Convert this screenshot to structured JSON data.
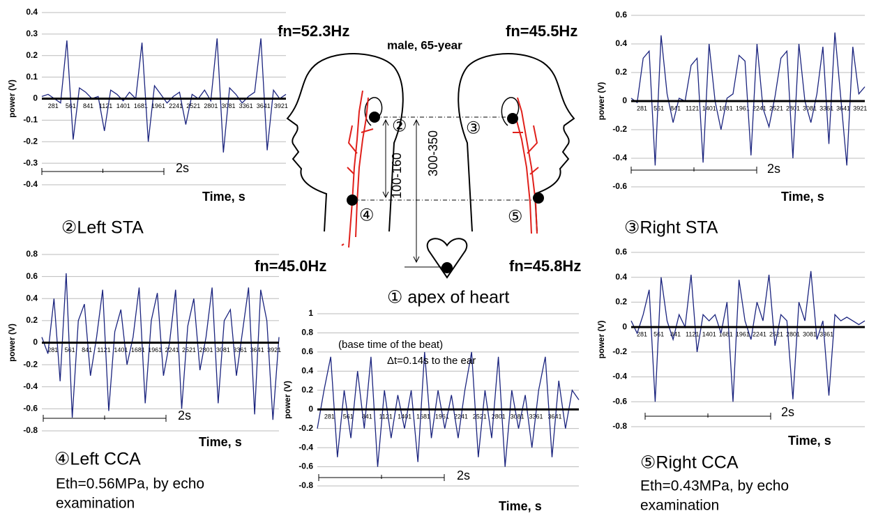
{
  "chart_data": [
    {
      "type": "line",
      "title": "②Left STA",
      "x_label": "Time, s",
      "y_label": "power (V)",
      "scale_label": "2s",
      "x": [
        100,
        200,
        300,
        400,
        500,
        600,
        700,
        800,
        900,
        1000,
        1100,
        1200,
        1300,
        1400,
        1500,
        1600,
        1700,
        1800,
        1900,
        2000,
        2100,
        2200,
        2300,
        2400,
        2500,
        2600,
        2700,
        2800,
        2900,
        3000,
        3100,
        3200,
        3300,
        3400,
        3500,
        3600,
        3700,
        3800,
        3900,
        4000
      ],
      "xlim": [
        100,
        4000
      ],
      "xticks": [
        281,
        561,
        841,
        1121,
        1401,
        1681,
        1961,
        2241,
        2521,
        2801,
        3081,
        3361,
        3641,
        3921
      ],
      "ylim": [
        -0.4,
        0.4
      ],
      "yticks": [
        0.4,
        0.3,
        0.2,
        0.1,
        0,
        -0.1,
        -0.2,
        -0.3,
        -0.4
      ],
      "grid": true,
      "series": [
        {
          "color": "#1a237e",
          "values": [
            0.01,
            0.02,
            0.0,
            -0.02,
            0.27,
            -0.19,
            0.05,
            0.03,
            0.0,
            0.01,
            -0.15,
            0.04,
            0.02,
            -0.01,
            0.03,
            0.0,
            0.26,
            -0.2,
            0.06,
            0.02,
            -0.02,
            0.01,
            0.03,
            -0.12,
            0.02,
            0.0,
            0.04,
            -0.01,
            0.28,
            -0.25,
            0.05,
            0.02,
            -0.02,
            0.01,
            0.03,
            0.28,
            -0.24,
            0.04,
            0.0,
            0.02
          ]
        }
      ]
    },
    {
      "type": "line",
      "title": "③Right STA",
      "x_label": "Time, s",
      "y_label": "power (V)",
      "scale_label": "2s",
      "x": [
        100,
        200,
        300,
        400,
        500,
        600,
        700,
        800,
        900,
        1000,
        1100,
        1200,
        1300,
        1400,
        1500,
        1600,
        1700,
        1800,
        1900,
        2000,
        2100,
        2200,
        2300,
        2400,
        2500,
        2600,
        2700,
        2800,
        2900,
        3000,
        3100,
        3200,
        3300,
        3400,
        3500,
        3600,
        3700,
        3800,
        3900,
        4000
      ],
      "xlim": [
        100,
        4000
      ],
      "xticks": [
        281,
        561,
        841,
        1121,
        1401,
        1681,
        1961,
        2241,
        2521,
        2801,
        3081,
        3361,
        3641,
        3921
      ],
      "ylim": [
        -0.6,
        0.6
      ],
      "yticks": [
        0.6,
        0.4,
        0.2,
        0,
        -0.2,
        -0.4,
        -0.6
      ],
      "grid": true,
      "series": [
        {
          "color": "#1a237e",
          "values": [
            0.02,
            -0.01,
            0.3,
            0.35,
            -0.45,
            0.46,
            0.05,
            -0.15,
            0.02,
            0.0,
            0.25,
            0.3,
            -0.43,
            0.4,
            0.0,
            -0.2,
            0.02,
            0.05,
            0.32,
            0.28,
            -0.38,
            0.4,
            -0.05,
            -0.18,
            0.03,
            0.3,
            0.35,
            -0.4,
            0.4,
            0.0,
            -0.15,
            0.05,
            0.38,
            -0.3,
            0.48,
            0.02,
            -0.45,
            0.38,
            0.05,
            0.1
          ]
        }
      ]
    },
    {
      "type": "line",
      "title": "④Left CCA",
      "notes": [
        "Eth=0.56MPa, by echo",
        "examination"
      ],
      "x_label": "Time, s",
      "y_label": "power (V)",
      "scale_label": "2s",
      "x": [
        100,
        200,
        300,
        400,
        500,
        600,
        700,
        800,
        900,
        1000,
        1100,
        1200,
        1300,
        1400,
        1500,
        1600,
        1700,
        1800,
        1900,
        2000,
        2100,
        2200,
        2300,
        2400,
        2500,
        2600,
        2700,
        2800,
        2900,
        3000,
        3100,
        3200,
        3300,
        3400,
        3500,
        3600,
        3700,
        3800,
        3900,
        4000
      ],
      "xlim": [
        100,
        4000
      ],
      "xticks": [
        281,
        561,
        841,
        1121,
        1401,
        1681,
        1961,
        2241,
        2521,
        2801,
        3081,
        3361,
        3641,
        3921
      ],
      "ylim": [
        -0.8,
        0.8
      ],
      "yticks": [
        0.8,
        0.6,
        0.4,
        0.2,
        0,
        -0.2,
        -0.4,
        -0.6,
        -0.8
      ],
      "grid": true,
      "series": [
        {
          "color": "#1a237e",
          "values": [
            0.05,
            -0.1,
            0.4,
            -0.35,
            0.63,
            -0.68,
            0.2,
            0.35,
            -0.3,
            0.05,
            0.48,
            -0.62,
            0.1,
            0.3,
            -0.2,
            0.05,
            0.5,
            -0.55,
            0.2,
            0.45,
            -0.3,
            0.0,
            0.48,
            -0.6,
            0.15,
            0.4,
            -0.25,
            0.05,
            0.5,
            -0.55,
            0.2,
            0.3,
            -0.3,
            0.1,
            0.5,
            -0.65,
            0.48,
            0.2,
            -0.7,
            0.05
          ]
        }
      ]
    },
    {
      "type": "line",
      "title": "⑤Right CCA",
      "notes": [
        "Eth=0.43MPa, by echo",
        "examination"
      ],
      "x_label": "Time, s",
      "y_label": "power (V)",
      "scale_label": "2s",
      "x": [
        100,
        200,
        300,
        400,
        500,
        600,
        700,
        800,
        900,
        1000,
        1100,
        1200,
        1300,
        1400,
        1500,
        1600,
        1700,
        1800,
        1900,
        2000,
        2100,
        2200,
        2300,
        2400,
        2500,
        2600,
        2700,
        2800,
        2900,
        3000,
        3100,
        3200,
        3300,
        3400,
        3500,
        3600,
        3700,
        3800,
        3900,
        4000
      ],
      "xlim": [
        100,
        4000
      ],
      "xticks": [
        281,
        561,
        841,
        1121,
        1401,
        1681,
        1961,
        2241,
        2521,
        2801,
        3081,
        3361
      ],
      "ylim": [
        -0.8,
        0.6
      ],
      "yticks": [
        0.6,
        0.4,
        0.2,
        0,
        -0.2,
        -0.4,
        -0.6,
        -0.8
      ],
      "grid": true,
      "series": [
        {
          "color": "#1a237e",
          "values": [
            0.05,
            -0.05,
            0.1,
            0.3,
            -0.6,
            0.4,
            0.05,
            -0.1,
            0.1,
            0.0,
            0.42,
            -0.2,
            0.1,
            0.05,
            0.1,
            -0.05,
            0.2,
            -0.6,
            0.38,
            0.05,
            -0.1,
            0.2,
            0.05,
            0.42,
            -0.15,
            0.1,
            0.05,
            -0.58,
            0.2,
            0.05,
            0.45,
            -0.1,
            0.05,
            -0.55,
            0.1,
            0.05,
            0.08,
            0.05,
            0.02,
            0.05
          ]
        }
      ]
    },
    {
      "type": "line",
      "title": "① apex of heart",
      "annotations": [
        "(base time of the beat)",
        "Δt=0.14s to the ear"
      ],
      "x_label": "Time, s",
      "y_label": "power (V)",
      "scale_label": "2s",
      "x": [
        100,
        200,
        300,
        400,
        500,
        600,
        700,
        800,
        900,
        1000,
        1100,
        1200,
        1300,
        1400,
        1500,
        1600,
        1700,
        1800,
        1900,
        2000,
        2100,
        2200,
        2300,
        2400,
        2500,
        2600,
        2700,
        2800,
        2900,
        3000,
        3100,
        3200,
        3300,
        3400,
        3500,
        3600,
        3700,
        3800,
        3900,
        4000
      ],
      "xlim": [
        100,
        4000
      ],
      "xticks": [
        281,
        561,
        841,
        1121,
        1401,
        1681,
        1961,
        2241,
        2521,
        2801,
        3081,
        3361,
        3641
      ],
      "ylim": [
        -0.8,
        1
      ],
      "yticks": [
        1,
        0.8,
        0.6,
        0.4,
        0.2,
        0,
        -0.2,
        -0.4,
        -0.6,
        -0.8
      ],
      "grid": true,
      "series": [
        {
          "color": "#1a237e",
          "values": [
            -0.2,
            0.2,
            0.55,
            -0.5,
            0.2,
            -0.3,
            0.4,
            -0.2,
            0.55,
            -0.6,
            0.2,
            -0.3,
            0.15,
            -0.2,
            0.2,
            -0.55,
            0.6,
            -0.3,
            0.2,
            -0.2,
            0.15,
            -0.3,
            0.2,
            0.6,
            -0.5,
            0.2,
            -0.3,
            0.55,
            -0.6,
            0.2,
            -0.2,
            0.15,
            -0.4,
            0.2,
            0.55,
            -0.5,
            0.3,
            -0.2,
            0.2,
            0.1
          ]
        }
      ]
    }
  ],
  "diagram": {
    "fn_labels": [
      "fn=52.3Hz",
      "fn=45.5Hz",
      "fn=45.0Hz",
      "fn=45.8Hz"
    ],
    "subject": "male, 65-year",
    "points": [
      "②",
      "③",
      "④",
      "⑤"
    ],
    "distances": [
      "100-160",
      "300-350"
    ]
  }
}
